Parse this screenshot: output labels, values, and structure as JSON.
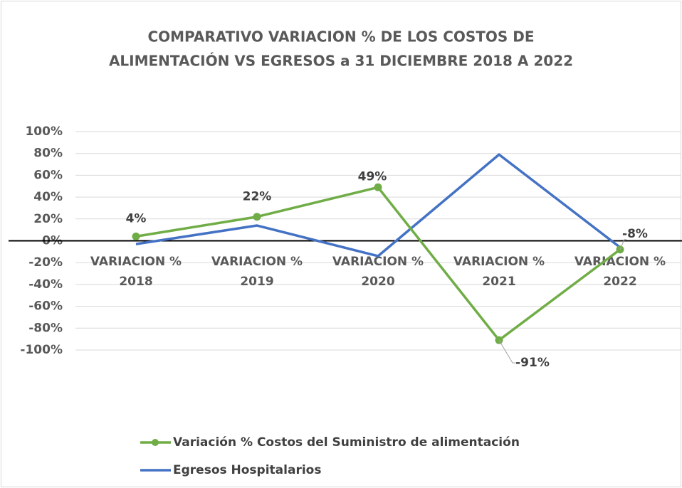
{
  "chart_data": {
    "type": "line",
    "title": [
      "COMPARATIVO VARIACION % DE LOS COSTOS DE",
      "ALIMENTACIÓN  VS EGRESOS a 31 DICIEMBRE 2018 A 2022"
    ],
    "categories": [
      "VARIACION % 2018",
      "VARIACION % 2019",
      "VARIACION % 2020",
      "VARIACION % 2021",
      "VARIACION % 2022"
    ],
    "series": [
      {
        "name": "Variación % Costos del Suministro de alimentación",
        "color": "#70ad47",
        "values": [
          4,
          22,
          49,
          -91,
          -8
        ],
        "value_labels": [
          "4%",
          "22%",
          "49%",
          "-91%",
          "-8%"
        ]
      },
      {
        "name": "Egresos Hospitalarios",
        "color": "#4472c4",
        "values": [
          -3,
          14,
          -14,
          79,
          -6
        ]
      }
    ],
    "ylim": [
      -100,
      100
    ],
    "yticks": [
      {
        "value": -100,
        "label": "-100%"
      },
      {
        "value": -80,
        "label": "-80%"
      },
      {
        "value": -60,
        "label": "-60%"
      },
      {
        "value": -40,
        "label": "-40%"
      },
      {
        "value": -20,
        "label": "-20%"
      },
      {
        "value": 0,
        "label": "0%"
      },
      {
        "value": 20,
        "label": "20%"
      },
      {
        "value": 40,
        "label": "40%"
      },
      {
        "value": 60,
        "label": "60%"
      },
      {
        "value": 80,
        "label": "80%"
      },
      {
        "value": 100,
        "label": "100%"
      }
    ],
    "grid": true,
    "legend": "bottom"
  }
}
